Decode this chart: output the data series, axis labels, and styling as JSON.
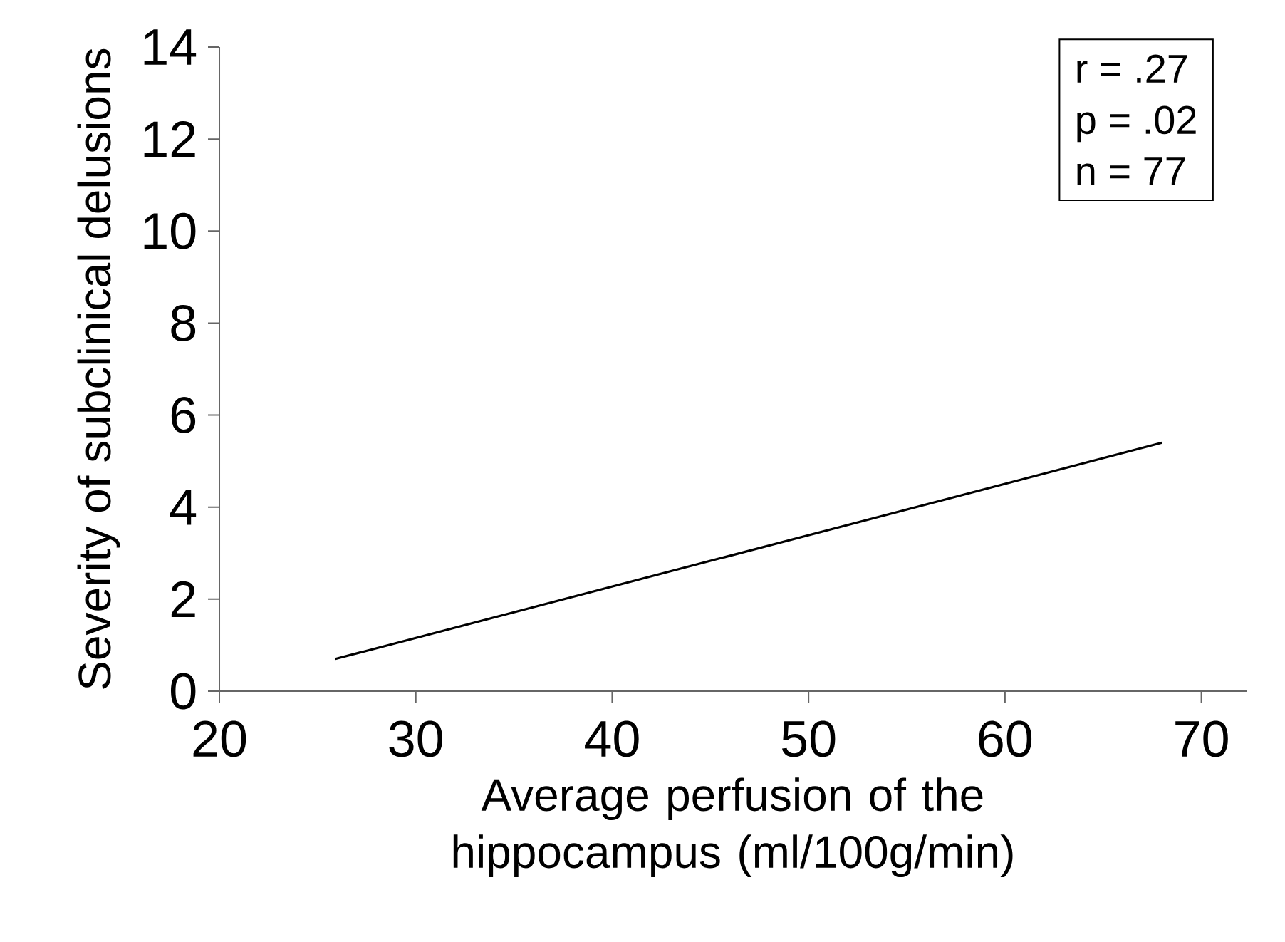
{
  "chart_data": {
    "type": "line",
    "xlabel": "Average perfusion of the hippocampus (ml/100g/min)",
    "ylabel": "Severity of subclinical delusions",
    "x": [
      25.9,
      68.0
    ],
    "series": [
      {
        "color": "#000000",
        "values": [
          0.7,
          5.4
        ]
      }
    ],
    "xlim": [
      20,
      72.3
    ],
    "xticks": [
      20,
      30,
      40,
      50,
      60,
      70
    ],
    "ylim": [
      0,
      14
    ],
    "yticks": [
      0,
      2,
      4,
      6,
      8,
      10,
      12,
      14
    ],
    "annotations": [
      "r = .27",
      "p = .02",
      "n = 77"
    ]
  }
}
